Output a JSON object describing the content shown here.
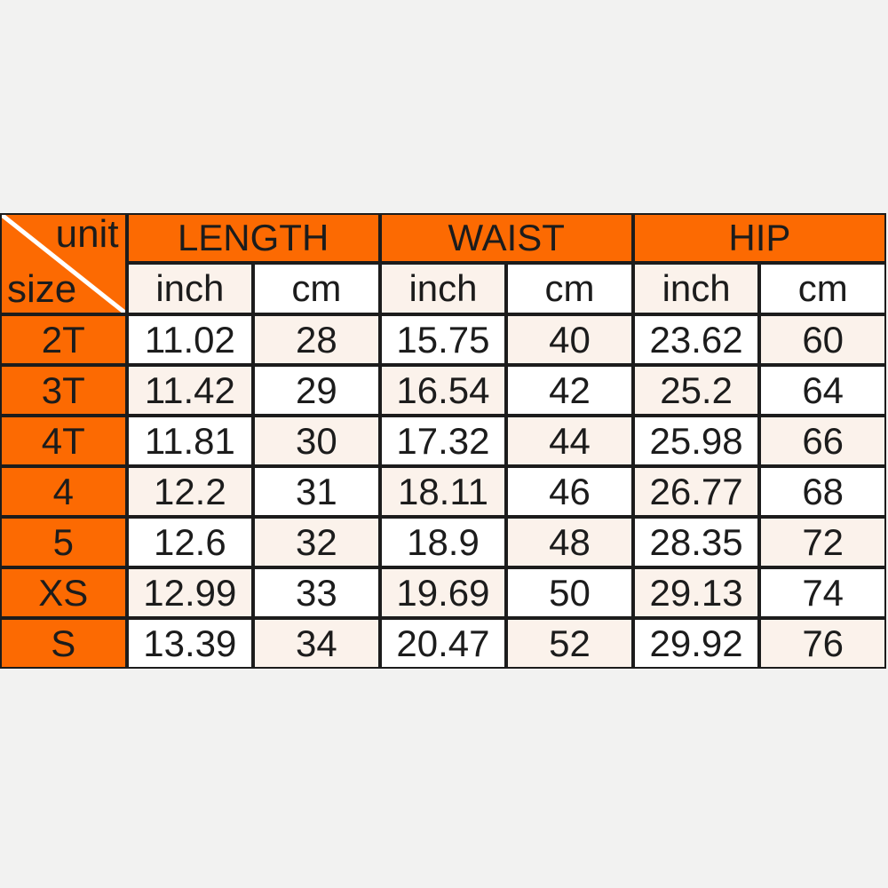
{
  "background_color": "#f2f2f1",
  "colors": {
    "header_orange": "#fc6a02",
    "border_orange": "#f2600a",
    "cell_cream": "#fbf2eb",
    "cell_white": "#ffffff",
    "divider_white": "#ffffff",
    "text": "#1c1c1c"
  },
  "table": {
    "corner": {
      "top_right_label": "unit",
      "bottom_left_label": "size"
    },
    "column_groups": [
      {
        "label": "LENGTH"
      },
      {
        "label": "WAIST"
      },
      {
        "label": "HIP"
      }
    ],
    "unit_headers": [
      "inch",
      "cm",
      "inch",
      "cm",
      "inch",
      "cm"
    ],
    "rows": [
      {
        "size": "2T",
        "values": [
          "11.02",
          "28",
          "15.75",
          "40",
          "23.62",
          "60"
        ]
      },
      {
        "size": "3T",
        "values": [
          "11.42",
          "29",
          "16.54",
          "42",
          "25.2",
          "64"
        ]
      },
      {
        "size": "4T",
        "values": [
          "11.81",
          "30",
          "17.32",
          "44",
          "25.98",
          "66"
        ]
      },
      {
        "size": "4",
        "values": [
          "12.2",
          "31",
          "18.11",
          "46",
          "26.77",
          "68"
        ]
      },
      {
        "size": "5",
        "values": [
          "12.6",
          "32",
          "18.9",
          "48",
          "28.35",
          "72"
        ]
      },
      {
        "size": "XS",
        "values": [
          "12.99",
          "33",
          "19.69",
          "50",
          "29.13",
          "74"
        ]
      },
      {
        "size": "S",
        "values": [
          "13.39",
          "34",
          "20.47",
          "52",
          "29.92",
          "76"
        ]
      }
    ]
  },
  "chart_data": {
    "type": "table",
    "title": "Size chart (unit / size)",
    "corner_labels": [
      "unit",
      "size"
    ],
    "column_groups": [
      "LENGTH",
      "WAIST",
      "HIP"
    ],
    "columns": [
      "size",
      "LENGTH inch",
      "LENGTH cm",
      "WAIST inch",
      "WAIST cm",
      "HIP inch",
      "HIP cm"
    ],
    "rows": [
      [
        "2T",
        11.02,
        28,
        15.75,
        40,
        23.62,
        60
      ],
      [
        "3T",
        11.42,
        29,
        16.54,
        42,
        25.2,
        64
      ],
      [
        "4T",
        11.81,
        30,
        17.32,
        44,
        25.98,
        66
      ],
      [
        "4",
        12.2,
        31,
        18.11,
        46,
        26.77,
        68
      ],
      [
        "5",
        12.6,
        32,
        18.9,
        48,
        28.35,
        72
      ],
      [
        "XS",
        12.99,
        33,
        19.69,
        50,
        29.13,
        74
      ],
      [
        "S",
        13.39,
        34,
        20.47,
        52,
        29.92,
        76
      ]
    ],
    "layout": {
      "grid": "on",
      "header_fill": "#fc6a02",
      "body_fill_pattern": "checkerboard white/cream"
    }
  }
}
